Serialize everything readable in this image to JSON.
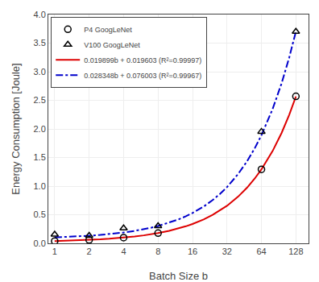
{
  "chart_data": {
    "type": "scatter",
    "xlabel": "Batch Size b",
    "ylabel": "Energy Consumption [Joule]",
    "log": "x",
    "grid": true,
    "legend": "upper left",
    "xlim": [
      0.88,
      165
    ],
    "ylim": [
      0,
      4
    ],
    "xticks": [
      1,
      2,
      4,
      8,
      16,
      32,
      64,
      128
    ],
    "yticks": [
      {
        "value": 0,
        "label": "0.0"
      },
      {
        "value": 0.5,
        "label": "0.5"
      },
      {
        "value": 1.0,
        "label": "1.0"
      },
      {
        "value": 1.5,
        "label": "1.5"
      },
      {
        "value": 2.0,
        "label": "2.0"
      },
      {
        "value": 2.5,
        "label": "2.5"
      },
      {
        "value": 3.0,
        "label": "3.0"
      },
      {
        "value": 3.5,
        "label": "3.5"
      },
      {
        "value": 4.0,
        "label": "4.0"
      }
    ],
    "series": [
      {
        "name": "P4 GoogLeNet",
        "type": "scatter",
        "marker": "circle-open",
        "color": "black",
        "x": [
          1,
          2,
          4,
          8,
          64,
          128
        ],
        "values": [
          0.039,
          0.059,
          0.099,
          0.179,
          1.293,
          2.57
        ]
      },
      {
        "name": "V100 GoogLeNet",
        "type": "scatter",
        "marker": "triangle-up-open",
        "color": "black",
        "x": [
          1,
          2,
          4,
          8,
          64,
          128
        ],
        "values": [
          0.154,
          0.133,
          0.263,
          0.303,
          1.952,
          3.7
        ]
      },
      {
        "name": "0.019899b + 0.019603 (R²=0.99997)",
        "type": "line",
        "line_style": "solid",
        "color": "#dd0000",
        "x": [
          1,
          1.25,
          1.5,
          1.75,
          2,
          2.5,
          3,
          3.5,
          4,
          5,
          6,
          7,
          8,
          10,
          12,
          14,
          16,
          20,
          24,
          28,
          32,
          40,
          48,
          56,
          64,
          80,
          96,
          112,
          128
        ],
        "values": [
          0.039502,
          0.04447675,
          0.0494515,
          0.05442625,
          0.059401,
          0.0693505,
          0.0793,
          0.0892495,
          0.099199,
          0.119098,
          0.138997,
          0.158896,
          0.178795,
          0.218593,
          0.258391,
          0.298189,
          0.337987,
          0.417583,
          0.497179,
          0.576775,
          0.656371,
          0.815563,
          0.974755,
          1.133947,
          1.293139,
          1.611523,
          1.929907,
          2.248291,
          2.566675
        ]
      },
      {
        "name": "0.028348b + 0.076003 (R²=0.99967)",
        "type": "line",
        "line_style": "dashdot",
        "color": "#0000cc",
        "x": [
          1,
          1.25,
          1.5,
          1.75,
          2,
          2.5,
          3,
          3.5,
          4,
          5,
          6,
          7,
          8,
          10,
          12,
          14,
          16,
          20,
          24,
          28,
          32,
          40,
          48,
          56,
          64,
          80,
          96,
          112,
          128
        ],
        "values": [
          0.104351,
          0.111438,
          0.118525,
          0.125612,
          0.132699,
          0.146873,
          0.161047,
          0.175221,
          0.189395,
          0.217743,
          0.246091,
          0.274439,
          0.302787,
          0.359483,
          0.416179,
          0.472875,
          0.529571,
          0.642963,
          0.756355,
          0.869747,
          0.983139,
          1.209923,
          1.436707,
          1.663491,
          1.890275,
          2.343843,
          2.797411,
          3.250979,
          3.704547
        ]
      }
    ]
  }
}
